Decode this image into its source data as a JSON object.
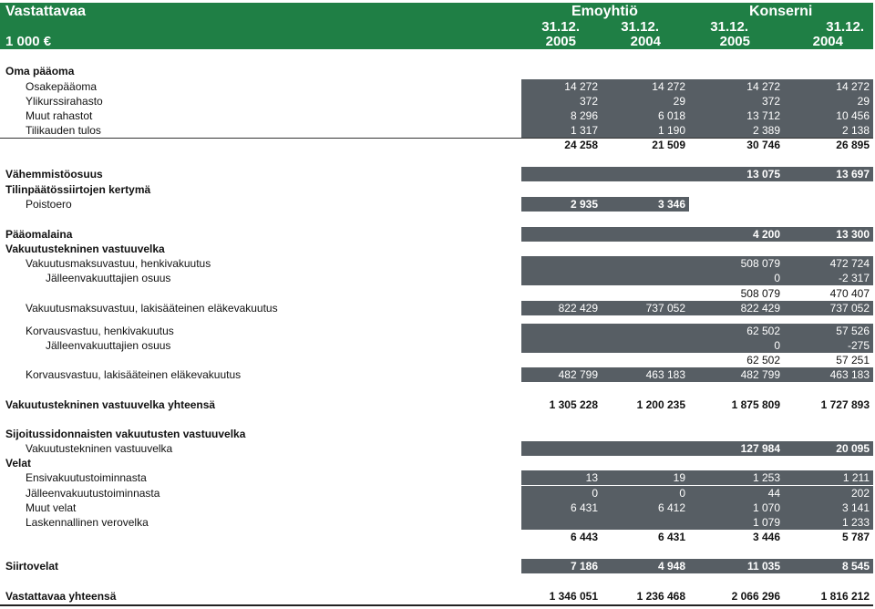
{
  "header": {
    "title": "Vastattavaa",
    "unit": "1 000 €",
    "group1": "Emoyhtiö",
    "group2": "Konserni",
    "date_label": "31.12.",
    "years": [
      "2005",
      "2004",
      "2005",
      "2004"
    ]
  },
  "rows": [
    {
      "label": "Oma pääoma",
      "bold": true,
      "indent": 0,
      "values": [
        "",
        "",
        "",
        ""
      ],
      "shade": [
        false,
        false,
        false,
        false
      ]
    },
    {
      "label": "Osakepääoma",
      "indent": 1,
      "values": [
        "14 272",
        "14 272",
        "14 272",
        "14 272"
      ],
      "shade": [
        true,
        true,
        true,
        true
      ]
    },
    {
      "label": "Ylikurssirahasto",
      "indent": 1,
      "values": [
        "372",
        "29",
        "372",
        "29"
      ],
      "shade": [
        true,
        true,
        true,
        true
      ]
    },
    {
      "label": "Muut rahastot",
      "indent": 1,
      "values": [
        "8 296",
        "6 018",
        "13 712",
        "10 456"
      ],
      "shade": [
        true,
        true,
        true,
        true
      ]
    },
    {
      "label": "Tilikauden tulos",
      "indent": 1,
      "values": [
        "1 317",
        "1 190",
        "2 389",
        "2 138"
      ],
      "shade": [
        true,
        true,
        true,
        true
      ]
    },
    {
      "label": "",
      "bold": true,
      "indent": 0,
      "values": [
        "24 258",
        "21 509",
        "30 746",
        "26 895"
      ],
      "shade": [
        false,
        false,
        false,
        false
      ]
    },
    {
      "label": "Vähemmistöosuus",
      "bold": true,
      "indent": 0,
      "values": [
        "",
        "",
        "13 075",
        "13 697"
      ],
      "shade": [
        true,
        true,
        true,
        true
      ]
    },
    {
      "label": "Tilinpäätössiirtojen kertymä",
      "bold": true,
      "indent": 0,
      "values": [
        "",
        "",
        "",
        ""
      ],
      "shade": [
        false,
        false,
        false,
        false
      ]
    },
    {
      "label": "Poistoero",
      "indent": 1,
      "values": [
        "2 935",
        "3 346",
        "",
        ""
      ],
      "shade": [
        true,
        true,
        false,
        false
      ],
      "bold_values": true
    },
    {
      "label": "Pääomalaina",
      "bold": true,
      "indent": 0,
      "values": [
        "",
        "",
        "4 200",
        "13 300"
      ],
      "shade": [
        true,
        true,
        true,
        true
      ]
    },
    {
      "label": "Vakuutustekninen vastuuvelka",
      "bold": true,
      "indent": 0,
      "values": [
        "",
        "",
        "",
        ""
      ],
      "shade": [
        false,
        false,
        false,
        false
      ]
    },
    {
      "label": "Vakuutusmaksuvastuu, henkivakuutus",
      "indent": 1,
      "values": [
        "",
        "",
        "508 079",
        "472 724"
      ],
      "shade": [
        true,
        true,
        true,
        true
      ]
    },
    {
      "label": "Jälleenvakuuttajien osuus",
      "indent": 2,
      "values": [
        "",
        "",
        "0",
        "-2 317"
      ],
      "shade": [
        true,
        true,
        true,
        true
      ]
    },
    {
      "label": "",
      "indent": 0,
      "values": [
        "",
        "",
        "508 079",
        "470 407"
      ],
      "shade": [
        false,
        false,
        false,
        false
      ]
    },
    {
      "label": "Vakuutusmaksuvastuu, lakisääteinen eläkevakuutus",
      "indent": 1,
      "values": [
        "822 429",
        "737 052",
        "822 429",
        "737 052"
      ],
      "shade": [
        true,
        true,
        true,
        true
      ]
    },
    {
      "label": "Korvausvastuu, henkivakuutus",
      "indent": 1,
      "values": [
        "",
        "",
        "62 502",
        "57 526"
      ],
      "shade": [
        true,
        true,
        true,
        true
      ]
    },
    {
      "label": "Jälleenvakuuttajien osuus",
      "indent": 2,
      "values": [
        "",
        "",
        "0",
        "-275"
      ],
      "shade": [
        true,
        true,
        true,
        true
      ]
    },
    {
      "label": "",
      "indent": 0,
      "values": [
        "",
        "",
        "62 502",
        "57 251"
      ],
      "shade": [
        false,
        false,
        false,
        false
      ]
    },
    {
      "label": "Korvausvastuu, lakisääteinen eläkevakuutus",
      "indent": 1,
      "values": [
        "482 799",
        "463 183",
        "482 799",
        "463 183"
      ],
      "shade": [
        true,
        true,
        true,
        true
      ]
    },
    {
      "label": "Vakuutustekninen vastuuvelka yhteensä",
      "bold": true,
      "indent": 0,
      "values": [
        "1 305 228",
        "1 200 235",
        "1 875 809",
        "1 727 893"
      ],
      "shade": [
        false,
        false,
        false,
        false
      ]
    },
    {
      "label": "Sijoitussidonnaisten vakuutusten vastuuvelka",
      "bold": true,
      "indent": 0,
      "values": [
        "",
        "",
        "",
        ""
      ],
      "shade": [
        false,
        false,
        false,
        false
      ]
    },
    {
      "label": "Vakuutustekninen vastuuvelka",
      "indent": 1,
      "values": [
        "",
        "",
        "127 984",
        "20 095"
      ],
      "shade": [
        true,
        true,
        true,
        true
      ],
      "bold_values": true
    },
    {
      "label": "Velat",
      "bold": true,
      "indent": 0,
      "values": [
        "",
        "",
        "",
        ""
      ],
      "shade": [
        false,
        false,
        false,
        false
      ]
    },
    {
      "label": "Ensivakuutustoiminnasta",
      "indent": 1,
      "values": [
        "13",
        "19",
        "1 253",
        "1 211"
      ],
      "shade": [
        true,
        true,
        true,
        true
      ]
    },
    {
      "label": "Jälleenvakuutustoiminnasta",
      "indent": 1,
      "values": [
        "0",
        "0",
        "44",
        "202"
      ],
      "shade": [
        true,
        true,
        true,
        true
      ]
    },
    {
      "label": "Muut velat",
      "indent": 1,
      "values": [
        "6 431",
        "6 412",
        "1 070",
        "3 141"
      ],
      "shade": [
        true,
        true,
        true,
        true
      ]
    },
    {
      "label": "Laskennallinen verovelka",
      "indent": 1,
      "values": [
        "",
        "",
        "1 079",
        "1 233"
      ],
      "shade": [
        true,
        true,
        true,
        true
      ]
    },
    {
      "label": "",
      "bold": true,
      "indent": 0,
      "values": [
        "6 443",
        "6 431",
        "3 446",
        "5 787"
      ],
      "shade": [
        false,
        false,
        false,
        false
      ]
    },
    {
      "label": "Siirtovelat",
      "bold": true,
      "indent": 0,
      "values": [
        "7 186",
        "4 948",
        "11 035",
        "8 545"
      ],
      "shade": [
        true,
        true,
        true,
        true
      ]
    },
    {
      "label": "Vastattavaa yhteensä",
      "bold": true,
      "indent": 0,
      "values": [
        "1 346 051",
        "1 236 468",
        "2 066 296",
        "1 816 212"
      ],
      "shade": [
        false,
        false,
        false,
        false
      ]
    }
  ]
}
